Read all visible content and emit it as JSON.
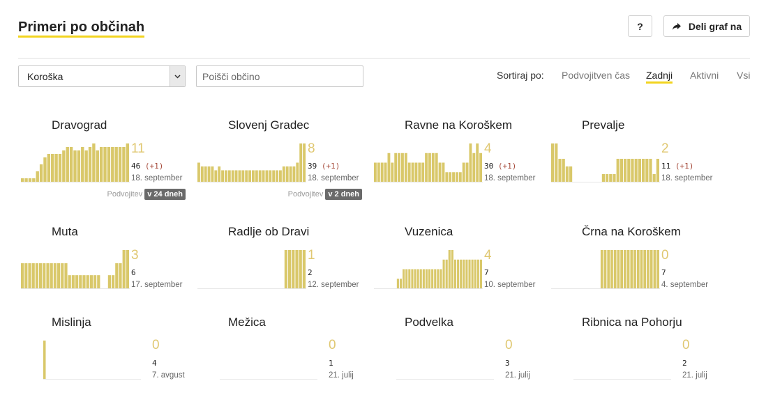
{
  "header": {
    "title": "Primeri po občinah",
    "help_label": "?",
    "share_label": "Deli graf na"
  },
  "filters": {
    "region_value": "Koroška",
    "search_placeholder": "Poišči občino",
    "sort_label": "Sortiraj po:",
    "sort_options": [
      "Podvojitven čas",
      "Zadnji",
      "Aktivni",
      "Vsi"
    ],
    "sort_active": "Zadnji"
  },
  "colors": {
    "bar": "#d9c86a",
    "accent": "#f2d41f",
    "number": "#e0c872",
    "delta": "#a64b3b"
  },
  "municipalities": [
    {
      "name": "Dravograd",
      "active": "11",
      "total": "46",
      "delta": "(+1)",
      "date": "18. september",
      "doubling_label": "Podvojitev",
      "doubling_value": "v 24 dneh",
      "bars": [
        1,
        1,
        1,
        1,
        3,
        5,
        7,
        8,
        8,
        8,
        8,
        9,
        10,
        10,
        9,
        9,
        10,
        9,
        10,
        11,
        9,
        10,
        10,
        10,
        10,
        10,
        10,
        10,
        11
      ]
    },
    {
      "name": "Slovenj Gradec",
      "active": "8",
      "total": "39",
      "delta": "(+1)",
      "date": "18. september",
      "doubling_label": "Podvojitev",
      "doubling_value": "v 2 dneh",
      "bars": [
        5,
        4,
        4,
        4,
        4,
        3,
        4,
        3,
        3,
        3,
        3,
        3,
        3,
        3,
        3,
        3,
        3,
        3,
        3,
        3,
        3,
        3,
        3,
        3,
        3,
        4,
        4,
        4,
        4,
        5,
        10,
        10
      ]
    },
    {
      "name": "Ravne na Koroškem",
      "active": "4",
      "total": "30",
      "delta": "(+1)",
      "date": "18. september",
      "bars": [
        2,
        2,
        2,
        2,
        3,
        2,
        3,
        3,
        3,
        3,
        2,
        2,
        2,
        2,
        2,
        3,
        3,
        3,
        3,
        2,
        2,
        1,
        1,
        1,
        1,
        1,
        2,
        2,
        4,
        3,
        4,
        3
      ]
    },
    {
      "name": "Prevalje",
      "active": "2",
      "total": "11",
      "delta": "(+1)",
      "date": "18. september",
      "bars": [
        5,
        5,
        3,
        3,
        2,
        2,
        0,
        0,
        0,
        0,
        0,
        0,
        0,
        0,
        1,
        1,
        1,
        1,
        3,
        3,
        3,
        3,
        3,
        3,
        3,
        3,
        3,
        3,
        1,
        3
      ]
    },
    {
      "name": "Muta",
      "active": "3",
      "total": "6",
      "date": "17. september",
      "bars": [
        2.3,
        2.3,
        2.3,
        2.3,
        2.3,
        2.3,
        2.3,
        2.3,
        2.3,
        2.3,
        2.3,
        2.3,
        2.3,
        1.2,
        1.2,
        1.2,
        1.2,
        1.2,
        1.2,
        1.2,
        1.2,
        1.2,
        0,
        0,
        1.2,
        1.2,
        2.3,
        2.3,
        3.5,
        3.5
      ]
    },
    {
      "name": "Radlje ob Dravi",
      "active": "1",
      "total": "2",
      "date": "12. september",
      "bars": [
        0,
        0,
        0,
        0,
        0,
        0,
        0,
        0,
        0,
        0,
        0,
        0,
        0,
        0,
        0,
        0,
        0,
        0,
        0,
        0,
        0,
        0,
        0,
        0,
        1,
        1,
        1,
        1,
        1,
        1
      ]
    },
    {
      "name": "Vuzenica",
      "active": "4",
      "total": "7",
      "date": "10. september",
      "bars": [
        0,
        0,
        0,
        0,
        0,
        0,
        0,
        0,
        1,
        1,
        2,
        2,
        2,
        2,
        2,
        2,
        2,
        2,
        2,
        2,
        2,
        2,
        2,
        2,
        3,
        3,
        4,
        4,
        3,
        3,
        3,
        3,
        3,
        3,
        3,
        3,
        3,
        3
      ]
    },
    {
      "name": "Črna na Koroškem",
      "active": "0",
      "total": "7",
      "date": "4. september",
      "bars": [
        0,
        0,
        0,
        0,
        0,
        0,
        0,
        0,
        0,
        0,
        0,
        0,
        0,
        0,
        0,
        1,
        1,
        1,
        1,
        1,
        1,
        1,
        1,
        1,
        1,
        1,
        1,
        1,
        1,
        1,
        1,
        1,
        1
      ]
    },
    {
      "name": "Mislinja",
      "active": "0",
      "total": "4",
      "date": "7. avgust",
      "bars": [
        1,
        0,
        0,
        0,
        0,
        0,
        0,
        0,
        0,
        0,
        0,
        0,
        0,
        0,
        0,
        0,
        0,
        0,
        0,
        0,
        0,
        0,
        0,
        0,
        0,
        0,
        0,
        0,
        0,
        0,
        0
      ]
    },
    {
      "name": "Mežica",
      "active": "0",
      "total": "1",
      "date": "21. julij",
      "bars": []
    },
    {
      "name": "Podvelka",
      "active": "0",
      "total": "3",
      "date": "21. julij",
      "bars": []
    },
    {
      "name": "Ribnica na Pohorju",
      "active": "0",
      "total": "2",
      "date": "21. julij",
      "bars": []
    }
  ]
}
